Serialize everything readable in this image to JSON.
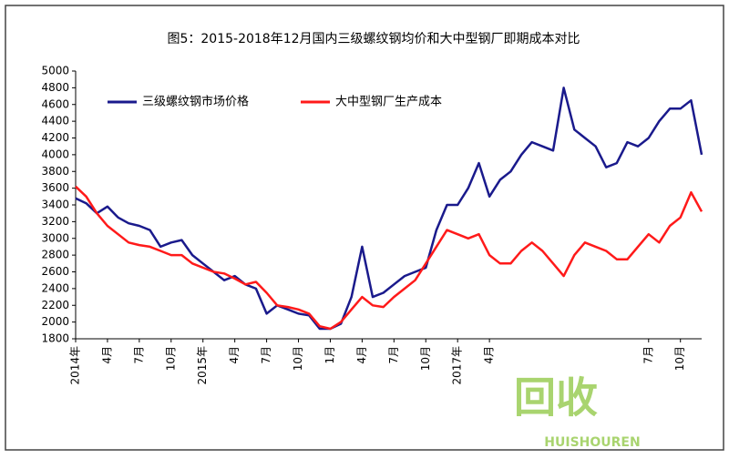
{
  "chart_data": {
    "type": "line",
    "title": "图5：2015-2018年12月国内三级螺纹钢均价和大中型钢厂即期成本对比",
    "categories": [
      "2014年",
      null,
      null,
      "4月",
      null,
      null,
      "7月",
      null,
      null,
      "10月",
      null,
      null,
      "2015年",
      null,
      null,
      "4月",
      null,
      null,
      "7月",
      null,
      null,
      "10月",
      null,
      null,
      "1月",
      null,
      null,
      "4月",
      null,
      null,
      "7月",
      null,
      null,
      "10月",
      null,
      null,
      "2017年",
      null,
      null,
      "4月",
      null,
      null,
      null,
      null,
      null,
      null,
      null,
      null,
      null,
      null,
      null,
      null,
      null,
      null,
      "7月",
      null,
      null,
      "10月",
      null,
      null
    ],
    "series": [
      {
        "name": "三级螺纹钢市场价格",
        "color": "#1a1a8c",
        "values": [
          3480,
          3420,
          3300,
          3380,
          3250,
          3180,
          3150,
          3100,
          2900,
          2950,
          2980,
          2800,
          2700,
          2600,
          2500,
          2550,
          2450,
          2400,
          2100,
          2200,
          2150,
          2100,
          2080,
          1920,
          1920,
          1980,
          2300,
          2900,
          2300,
          2350,
          2450,
          2550,
          2600,
          2650,
          3100,
          3400,
          3400,
          3600,
          3900,
          3500,
          3700,
          3800,
          4000,
          4150,
          4100,
          4050,
          4800,
          4300,
          4200,
          4100,
          3850,
          3900,
          4150,
          4100,
          4200,
          4400,
          4550,
          4550,
          4650,
          4000
        ]
      },
      {
        "name": "大中型钢厂生产成本",
        "color": "#ff1a1a",
        "values": [
          3620,
          3500,
          3300,
          3150,
          3050,
          2950,
          2920,
          2900,
          2850,
          2800,
          2800,
          2700,
          2650,
          2600,
          2580,
          2520,
          2450,
          2480,
          2350,
          2200,
          2180,
          2150,
          2100,
          1950,
          1920,
          2000,
          2150,
          2300,
          2200,
          2180,
          2300,
          2400,
          2500,
          2700,
          2900,
          3100,
          3050,
          3000,
          3050,
          2800,
          2700,
          2700,
          2850,
          2950,
          2850,
          2700,
          2550,
          2800,
          2950,
          2900,
          2850,
          2750,
          2750,
          2900,
          3050,
          2950,
          3150,
          3250,
          3550,
          3320
        ]
      }
    ],
    "ylim": [
      1800,
      5000
    ],
    "yticks": [
      1800,
      2000,
      2200,
      2400,
      2600,
      2800,
      3000,
      3200,
      3400,
      3600,
      3800,
      4000,
      4200,
      4400,
      4600,
      4800,
      5000
    ],
    "legend": "top-left",
    "annotations": [
      "回收",
      "HUISHOUREN"
    ]
  }
}
